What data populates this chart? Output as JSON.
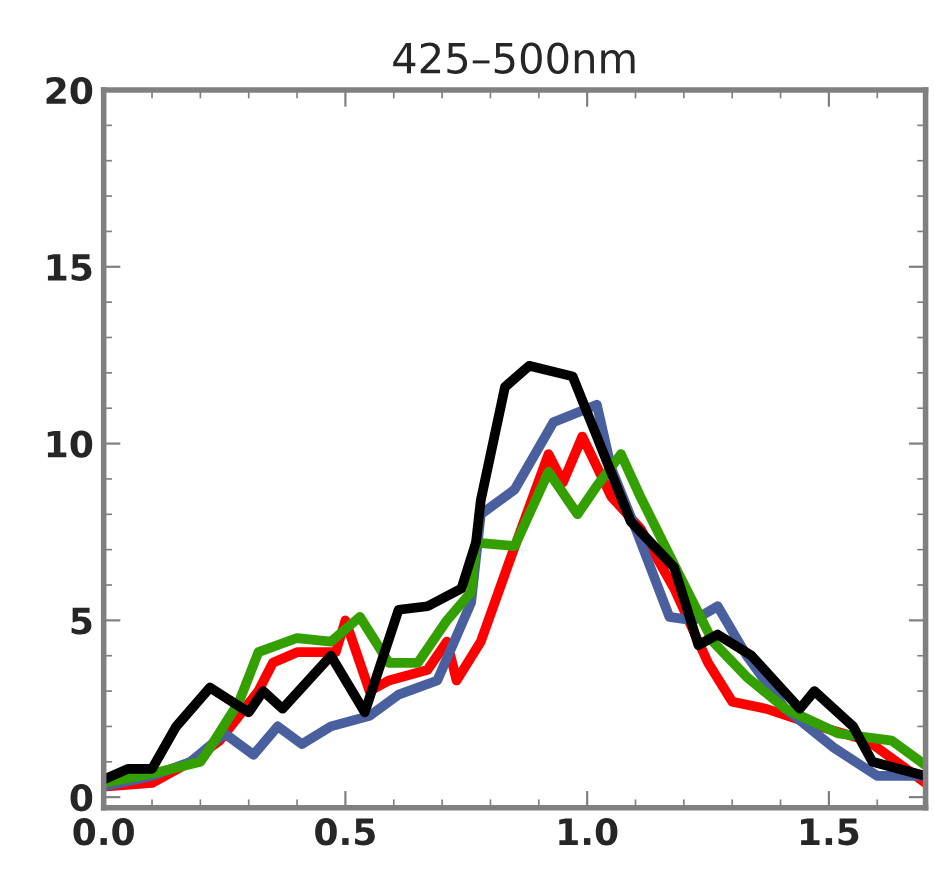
{
  "chart_data": {
    "type": "line",
    "title": "425–500nm",
    "xlim": [
      0,
      1.7
    ],
    "ylim": [
      -0.3,
      20
    ],
    "xticks": [
      {
        "value": 0,
        "label": "0.0"
      },
      0.5,
      {
        "value": 1,
        "label": "1.0"
      },
      1.5
    ],
    "yticks": [
      0,
      5,
      10,
      15,
      20
    ],
    "grid": false,
    "legend": false,
    "marker": "none",
    "line_style": "solid",
    "series": [
      {
        "color": "#ff0000",
        "x": [
          0,
          0.1,
          0.18,
          0.24,
          0.32,
          0.35,
          0.4,
          0.48,
          0.5,
          0.55,
          0.59,
          0.67,
          0.71,
          0.73,
          0.78,
          0.84,
          0.92,
          0.95,
          0.99,
          1.05,
          1.11,
          1.18,
          1.25,
          1.3,
          1.37,
          1.48,
          1.58,
          1.7
        ],
        "values": [
          0.3,
          0.4,
          1.0,
          1.6,
          3.0,
          3.8,
          4.1,
          4.1,
          5.0,
          3.0,
          3.3,
          3.6,
          4.4,
          3.3,
          4.4,
          6.7,
          9.7,
          8.9,
          10.2,
          8.5,
          7.6,
          5.9,
          3.8,
          2.7,
          2.5,
          2.0,
          1.6,
          0.4
        ]
      },
      {
        "color": "#4a5f9e",
        "x": [
          0,
          0.1,
          0.18,
          0.25,
          0.31,
          0.36,
          0.41,
          0.47,
          0.55,
          0.61,
          0.69,
          0.76,
          0.78,
          0.85,
          0.93,
          1.02,
          1.05,
          1.1,
          1.17,
          1.22,
          1.27,
          1.33,
          1.41,
          1.51,
          1.6,
          1.7
        ],
        "values": [
          0.3,
          0.6,
          1.0,
          1.8,
          1.2,
          2.0,
          1.5,
          2.0,
          2.3,
          2.9,
          3.3,
          5.5,
          8.0,
          8.7,
          10.6,
          11.1,
          9.3,
          7.6,
          5.1,
          5.0,
          5.4,
          4.0,
          2.5,
          1.4,
          0.6,
          0.6
        ]
      },
      {
        "color": "#33a000",
        "x": [
          0,
          0.11,
          0.2,
          0.22,
          0.28,
          0.32,
          0.4,
          0.47,
          0.53,
          0.59,
          0.65,
          0.71,
          0.76,
          0.77,
          0.85,
          0.92,
          0.98,
          1.02,
          1.07,
          1.11,
          1.19,
          1.26,
          1.33,
          1.41,
          1.52,
          1.63,
          1.7
        ],
        "values": [
          0.4,
          0.7,
          1.0,
          1.4,
          2.7,
          4.1,
          4.5,
          4.4,
          5.1,
          3.8,
          3.8,
          5.0,
          5.8,
          7.2,
          7.1,
          9.2,
          8.0,
          8.8,
          9.7,
          8.5,
          6.3,
          4.4,
          3.4,
          2.5,
          1.8,
          1.6,
          0.9
        ]
      },
      {
        "color": "#000000",
        "x": [
          0,
          0.05,
          0.1,
          0.15,
          0.22,
          0.3,
          0.33,
          0.37,
          0.47,
          0.54,
          0.61,
          0.67,
          0.74,
          0.77,
          0.78,
          0.83,
          0.88,
          0.97,
          1.02,
          1.09,
          1.18,
          1.23,
          1.27,
          1.34,
          1.44,
          1.47,
          1.55,
          1.59,
          1.7
        ],
        "values": [
          0.5,
          0.8,
          0.8,
          2.0,
          3.1,
          2.4,
          3.0,
          2.5,
          4.0,
          2.4,
          5.3,
          5.4,
          5.9,
          7.2,
          8.4,
          11.6,
          12.2,
          11.9,
          10.2,
          7.8,
          6.5,
          4.3,
          4.6,
          4.0,
          2.5,
          3.0,
          2.0,
          1.0,
          0.6
        ]
      }
    ]
  }
}
